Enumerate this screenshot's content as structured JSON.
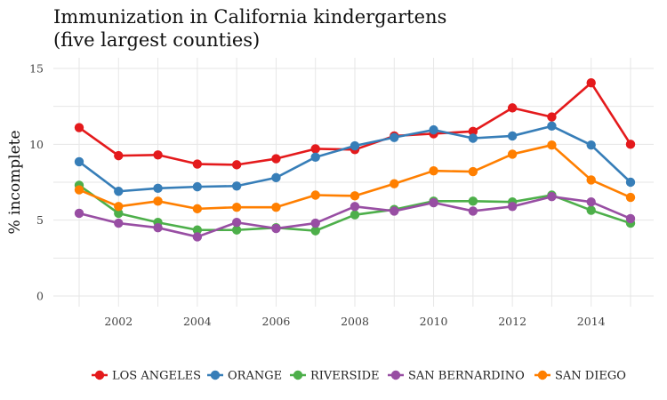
{
  "chart_data": {
    "type": "line",
    "title_lines": [
      "Immunization in California kindergartens",
      "(five largest counties)"
    ],
    "xlabel": "",
    "ylabel": "% incomplete",
    "xlim": [
      2000.3,
      2015.7
    ],
    "ylim": [
      0,
      15
    ],
    "xticks": [
      2002,
      2004,
      2006,
      2008,
      2010,
      2012,
      2014
    ],
    "yticks": [
      0,
      5,
      10,
      15
    ],
    "grid": true,
    "legend_position": "bottom",
    "x": [
      2001,
      2002,
      2003,
      2004,
      2005,
      2006,
      2007,
      2008,
      2009,
      2010,
      2011,
      2012,
      2013,
      2014,
      2015
    ],
    "series": [
      {
        "name": "LOS ANGELES",
        "color": "#e41a1c",
        "values": [
          11.1,
          9.25,
          9.3,
          8.7,
          8.65,
          9.05,
          9.7,
          9.65,
          10.55,
          10.7,
          10.85,
          12.4,
          11.8,
          14.05,
          10.0
        ]
      },
      {
        "name": "ORANGE",
        "color": "#377eb8",
        "values": [
          8.85,
          6.9,
          7.1,
          7.2,
          7.25,
          7.8,
          9.15,
          9.9,
          10.45,
          10.95,
          10.4,
          10.55,
          11.2,
          9.95,
          7.5
        ]
      },
      {
        "name": "RIVERSIDE",
        "color": "#4daf4a",
        "values": [
          7.3,
          5.45,
          4.85,
          4.35,
          4.35,
          4.5,
          4.3,
          5.35,
          5.7,
          6.25,
          6.25,
          6.2,
          6.65,
          5.65,
          4.8
        ]
      },
      {
        "name": "SAN BERNARDINO",
        "color": "#984ea3",
        "values": [
          5.45,
          4.8,
          4.5,
          3.9,
          4.85,
          4.45,
          4.8,
          5.9,
          5.6,
          6.15,
          5.6,
          5.9,
          6.55,
          6.2,
          5.1
        ]
      },
      {
        "name": "SAN DIEGO",
        "color": "#ff7f00",
        "values": [
          7.0,
          5.9,
          6.25,
          5.75,
          5.85,
          5.85,
          6.65,
          6.6,
          7.4,
          8.25,
          8.2,
          9.35,
          9.95,
          7.65,
          6.5
        ]
      }
    ]
  }
}
